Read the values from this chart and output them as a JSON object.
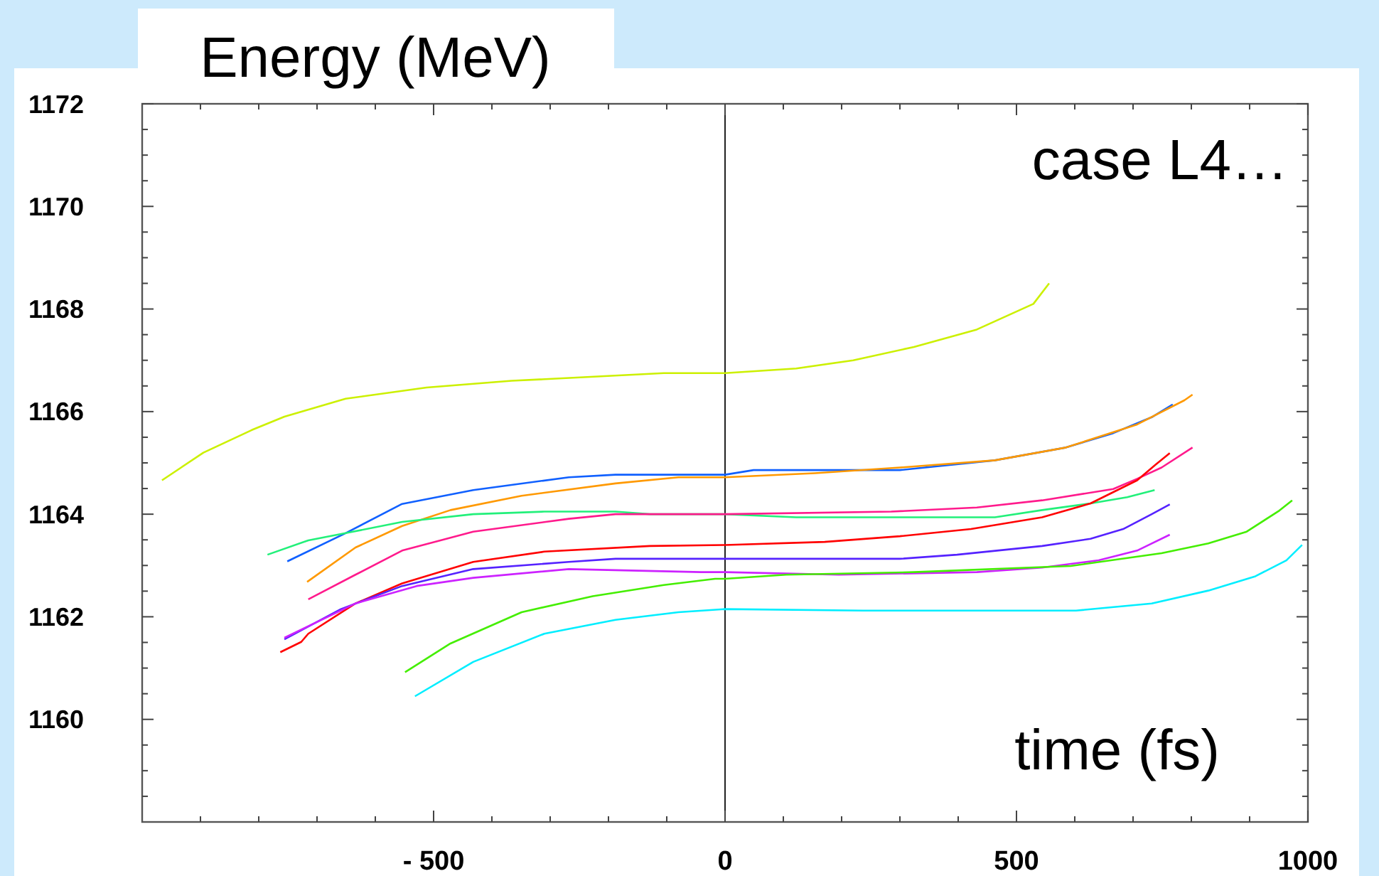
{
  "chart_data": {
    "type": "line",
    "xlabel": "time (fs)",
    "ylabel": "Energy (MeV)",
    "annotations": [
      "case L4…"
    ],
    "xlim": [
      -1000,
      1000
    ],
    "ylim": [
      1158,
      1172
    ],
    "xticks": [
      {
        "value": -900,
        "label": null
      },
      {
        "value": -800,
        "label": null
      },
      {
        "value": -700,
        "label": null
      },
      {
        "value": -600,
        "label": null
      },
      {
        "value": -500,
        "label": "- 500"
      },
      {
        "value": -400,
        "label": null
      },
      {
        "value": -300,
        "label": null
      },
      {
        "value": -200,
        "label": null
      },
      {
        "value": -100,
        "label": null
      },
      0,
      {
        "value": 100,
        "label": null
      },
      {
        "value": 200,
        "label": null
      },
      {
        "value": 300,
        "label": null
      },
      {
        "value": 400,
        "label": null
      },
      500,
      {
        "value": 600,
        "label": null
      },
      {
        "value": 700,
        "label": null
      },
      {
        "value": 800,
        "label": null
      },
      {
        "value": 900,
        "label": null
      },
      1000
    ],
    "yticks": [
      {
        "value": 1158.5,
        "label": null
      },
      {
        "value": 1159,
        "label": null
      },
      {
        "value": 1159.5,
        "label": null
      },
      1160,
      {
        "value": 1160.5,
        "label": null
      },
      {
        "value": 1161,
        "label": null
      },
      {
        "value": 1161.5,
        "label": null
      },
      1162,
      {
        "value": 1162.5,
        "label": null
      },
      {
        "value": 1163,
        "label": null
      },
      {
        "value": 1163.5,
        "label": null
      },
      1164,
      {
        "value": 1164.5,
        "label": null
      },
      {
        "value": 1165,
        "label": null
      },
      {
        "value": 1165.5,
        "label": null
      },
      1166,
      {
        "value": 1166.5,
        "label": null
      },
      {
        "value": 1167,
        "label": null
      },
      {
        "value": 1167.5,
        "label": null
      },
      1168,
      {
        "value": 1168.5,
        "label": null
      },
      {
        "value": 1169,
        "label": null
      },
      {
        "value": 1169.5,
        "label": null
      },
      1170,
      {
        "value": 1170.5,
        "label": null
      },
      {
        "value": 1171,
        "label": null
      },
      {
        "value": 1171.5,
        "label": null
      },
      1172
    ],
    "ref_lines": [
      {
        "axis": "x",
        "value": 0,
        "color": "#222222"
      }
    ],
    "grid": false,
    "line_style": "solid",
    "marker": "none",
    "series": [
      {
        "color": "#ccf000",
        "x": [
          -966,
          -895,
          -812,
          -756,
          -651,
          -512,
          -366,
          -105,
          0,
          122,
          220,
          324,
          432,
          529,
          556
        ],
        "values": [
          1164.66,
          1165.2,
          1165.64,
          1165.9,
          1166.25,
          1166.47,
          1166.6,
          1166.75,
          1166.75,
          1166.84,
          1167.0,
          1167.26,
          1167.6,
          1168.1,
          1168.5
        ]
      },
      {
        "color": "#1060ff",
        "x": [
          -751,
          -651,
          -554,
          -432,
          -268,
          -188,
          0,
          49,
          300,
          463,
          585,
          666,
          732,
          768
        ],
        "values": [
          1163.08,
          1163.63,
          1164.2,
          1164.47,
          1164.72,
          1164.77,
          1164.77,
          1164.86,
          1164.86,
          1165.05,
          1165.3,
          1165.58,
          1165.89,
          1166.14
        ]
      },
      {
        "color": "#ff9900",
        "x": [
          -717,
          -634,
          -554,
          -471,
          -349,
          -188,
          -80,
          0,
          154,
          300,
          463,
          585,
          707,
          788,
          802
        ],
        "values": [
          1162.68,
          1163.35,
          1163.77,
          1164.08,
          1164.36,
          1164.6,
          1164.72,
          1164.72,
          1164.8,
          1164.91,
          1165.05,
          1165.3,
          1165.75,
          1166.22,
          1166.33
        ]
      },
      {
        "color": "#22f07a",
        "x": [
          -785,
          -715,
          -651,
          -554,
          -432,
          -310,
          -188,
          -129,
          0,
          122,
          463,
          544,
          627,
          690,
          737
        ],
        "values": [
          1163.21,
          1163.49,
          1163.63,
          1163.85,
          1164.0,
          1164.05,
          1164.05,
          1164.0,
          1164.0,
          1163.94,
          1163.94,
          1164.08,
          1164.21,
          1164.33,
          1164.47
        ]
      },
      {
        "color": "#ff1a8c",
        "x": [
          -715,
          -634,
          -554,
          -432,
          -268,
          -188,
          0,
          285,
          432,
          544,
          666,
          707,
          749,
          802
        ],
        "values": [
          1162.34,
          1162.82,
          1163.29,
          1163.66,
          1163.91,
          1164.0,
          1164.0,
          1164.05,
          1164.13,
          1164.27,
          1164.49,
          1164.69,
          1164.91,
          1165.3
        ]
      },
      {
        "color": "#ff0000",
        "x": [
          -763,
          -727,
          -715,
          -634,
          -554,
          -432,
          -310,
          -129,
          0,
          171,
          300,
          422,
          544,
          627,
          707,
          739,
          763
        ],
        "values": [
          1161.31,
          1161.51,
          1161.67,
          1162.26,
          1162.65,
          1163.07,
          1163.27,
          1163.38,
          1163.4,
          1163.46,
          1163.57,
          1163.71,
          1163.94,
          1164.21,
          1164.66,
          1164.97,
          1165.19
        ]
      },
      {
        "color": "#5522ff",
        "x": [
          -756,
          -659,
          -554,
          -432,
          -268,
          -188,
          0,
          300,
          398,
          544,
          627,
          683,
          732,
          763
        ],
        "values": [
          1161.56,
          1162.15,
          1162.6,
          1162.93,
          1163.07,
          1163.13,
          1163.13,
          1163.13,
          1163.21,
          1163.38,
          1163.52,
          1163.71,
          1164.0,
          1164.19
        ]
      },
      {
        "color": "#cc22ff",
        "x": [
          -756,
          -634,
          -529,
          -432,
          -268,
          -41,
          0,
          195,
          432,
          544,
          641,
          707,
          763
        ],
        "values": [
          1161.59,
          1162.26,
          1162.6,
          1162.76,
          1162.93,
          1162.87,
          1162.87,
          1162.82,
          1162.87,
          1162.96,
          1163.1,
          1163.29,
          1163.6
        ]
      },
      {
        "color": "#44ee00",
        "x": [
          -549,
          -471,
          -349,
          -227,
          -105,
          -17,
          0,
          105,
          324,
          593,
          749,
          829,
          895,
          951,
          973
        ],
        "values": [
          1160.92,
          1161.48,
          1162.09,
          1162.4,
          1162.62,
          1162.74,
          1162.74,
          1162.82,
          1162.87,
          1162.99,
          1163.24,
          1163.43,
          1163.66,
          1164.07,
          1164.27
        ]
      },
      {
        "color": "#00eeff",
        "x": [
          -532,
          -432,
          -310,
          -188,
          -80,
          0,
          237,
          602,
          732,
          829,
          910,
          963,
          990
        ],
        "values": [
          1160.45,
          1161.12,
          1161.67,
          1161.94,
          1162.09,
          1162.15,
          1162.12,
          1162.12,
          1162.26,
          1162.51,
          1162.79,
          1163.1,
          1163.4
        ]
      }
    ]
  }
}
